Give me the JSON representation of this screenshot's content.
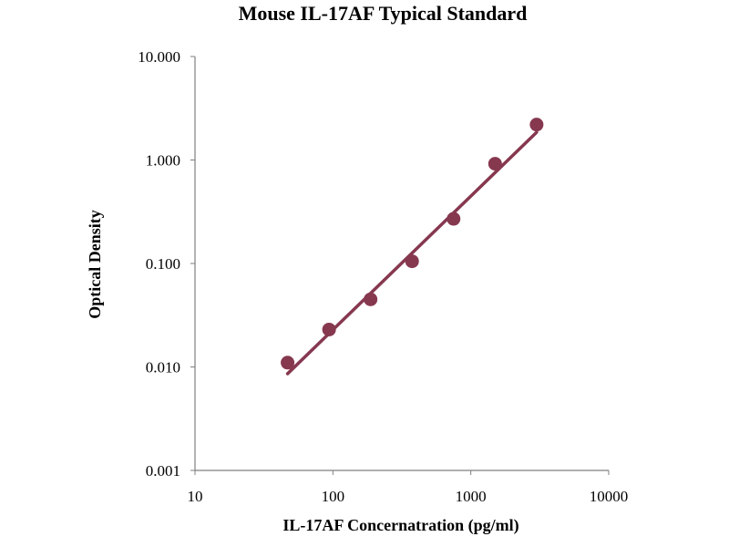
{
  "colors": {
    "series": "#86384f",
    "axis": "#7f7f7f",
    "text": "#000000",
    "background": "#ffffff"
  },
  "chart_data": {
    "type": "scatter",
    "title": "Mouse IL-17AF Typical Standard",
    "xlabel": "IL-17AF Concernatration (pg/ml)",
    "ylabel": "Optical Density",
    "xscale": "log",
    "yscale": "log",
    "xlim": [
      10,
      10000
    ],
    "ylim": [
      0.001,
      10
    ],
    "x_tick_labels": [
      "10",
      "100",
      "1000",
      "10000"
    ],
    "x_ticks": [
      10,
      100,
      1000,
      10000
    ],
    "y_tick_labels": [
      "0.001",
      "0.010",
      "0.100",
      "1.000",
      "10.000"
    ],
    "y_ticks": [
      0.001,
      0.01,
      0.1,
      1,
      10
    ],
    "grid": false,
    "legend": "none",
    "series": [
      {
        "points": [
          {
            "x": 46.9,
            "y": 0.011
          },
          {
            "x": 93.8,
            "y": 0.023
          },
          {
            "x": 187.5,
            "y": 0.045
          },
          {
            "x": 375,
            "y": 0.105
          },
          {
            "x": 750,
            "y": 0.27
          },
          {
            "x": 1500,
            "y": 0.92
          },
          {
            "x": 3000,
            "y": 2.2
          }
        ],
        "fit_line": {
          "x": [
            46.9,
            3000
          ],
          "y": [
            0.0086,
            1.85
          ]
        }
      }
    ]
  }
}
